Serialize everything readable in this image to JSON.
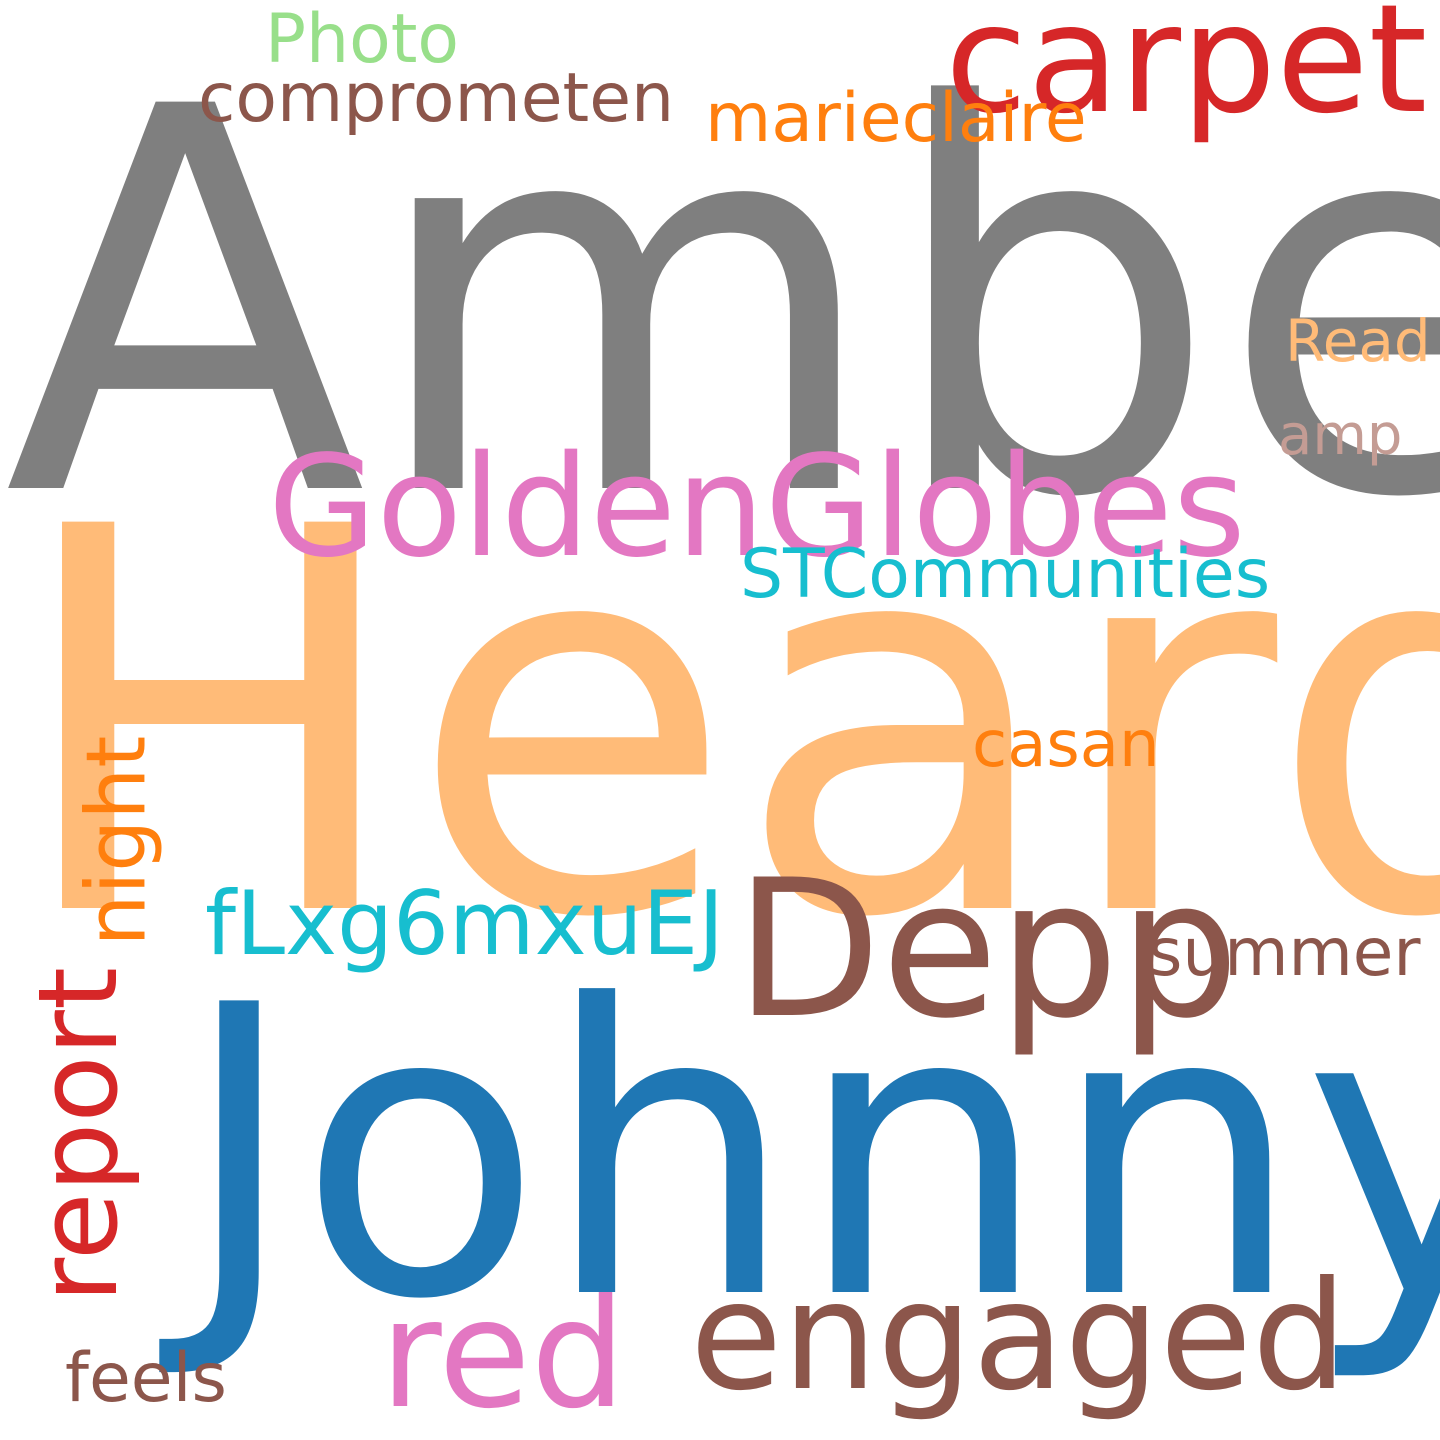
{
  "words": {
    "amber": {
      "text": "Amber",
      "color": "#7f7f7f"
    },
    "heard": {
      "text": "Heard",
      "color": "#ffbb78"
    },
    "johnny": {
      "text": "Johnny",
      "color": "#1f77b4"
    },
    "depp": {
      "text": "Depp",
      "color": "#8c564b"
    },
    "golden": {
      "text": "GoldenGlobes",
      "color": "#e377c2"
    },
    "carpet": {
      "text": "carpet",
      "color": "#d62728"
    },
    "engaged": {
      "text": "engaged",
      "color": "#8c564b"
    },
    "red": {
      "text": "red",
      "color": "#e377c2"
    },
    "report": {
      "text": "report",
      "color": "#d62728"
    },
    "night": {
      "text": "night",
      "color": "#ff7f0e"
    },
    "flx": {
      "text": "fLxg6mxuEJ",
      "color": "#17becf"
    },
    "stc": {
      "text": "STCommunities",
      "color": "#17becf"
    },
    "marie": {
      "text": "marieclaire",
      "color": "#ff7f0e"
    },
    "compro": {
      "text": "comprometen",
      "color": "#8c564b"
    },
    "photo": {
      "text": "Photo",
      "color": "#98df8a"
    },
    "summer": {
      "text": "summer",
      "color": "#8c564b"
    },
    "casan": {
      "text": "casan",
      "color": "#ff7f0e"
    },
    "feels": {
      "text": "feels",
      "color": "#8c564b"
    },
    "read": {
      "text": "Read",
      "color": "#ffbb78"
    },
    "amp": {
      "text": "amp",
      "color": "#c49c94"
    }
  }
}
